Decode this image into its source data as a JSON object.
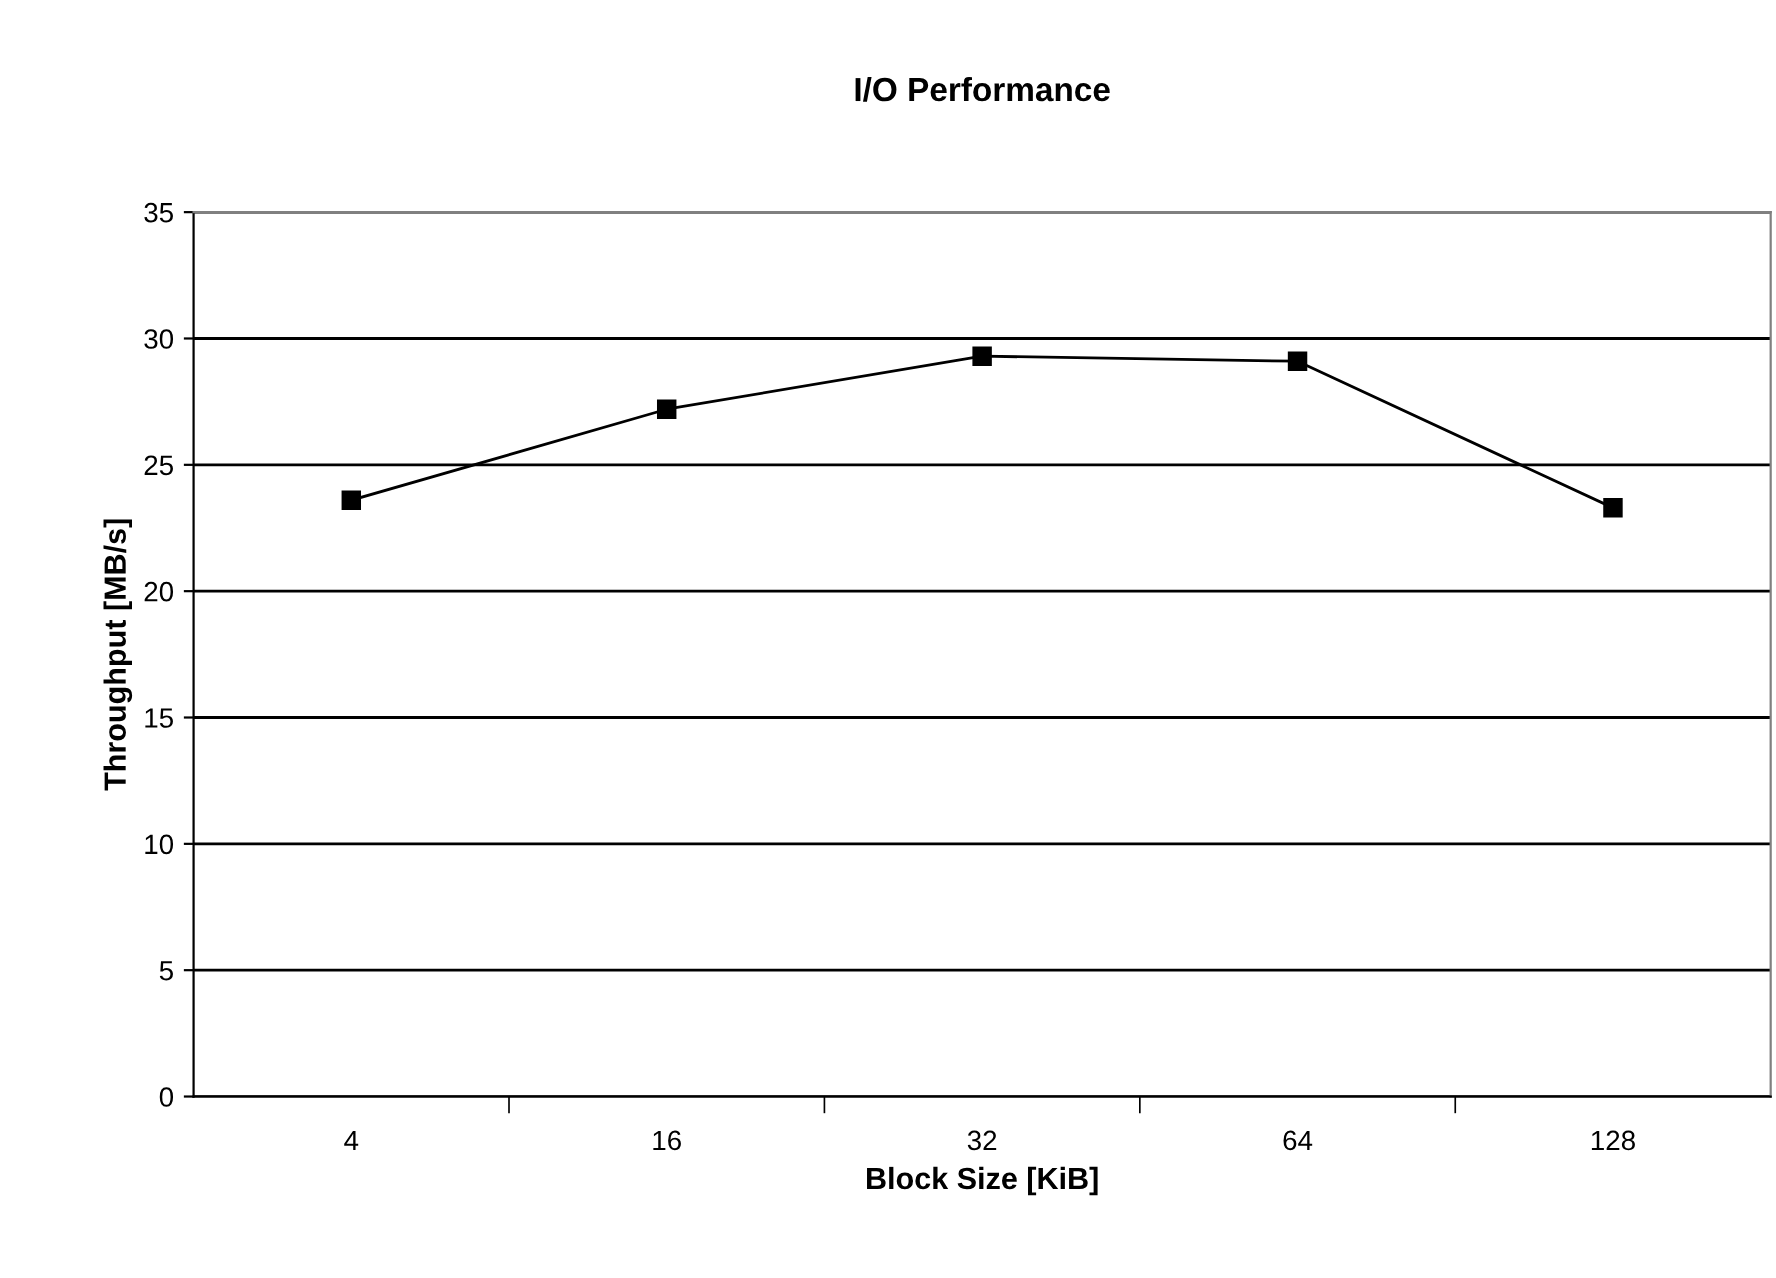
{
  "chart_data": {
    "type": "line",
    "title": "I/O Performance",
    "xlabel": "Block Size [KiB]",
    "ylabel": "Throughput [MB/s]",
    "categories": [
      "4",
      "16",
      "32",
      "64",
      "128"
    ],
    "series": [
      {
        "color": "#000000",
        "values": [
          23.6,
          27.2,
          29.3,
          29.1,
          23.3
        ]
      }
    ],
    "ylim": [
      0,
      35
    ],
    "yticks": [
      0,
      5,
      10,
      15,
      20,
      25,
      30,
      35
    ],
    "grid": "y",
    "marker": "square",
    "line_style": "solid"
  }
}
